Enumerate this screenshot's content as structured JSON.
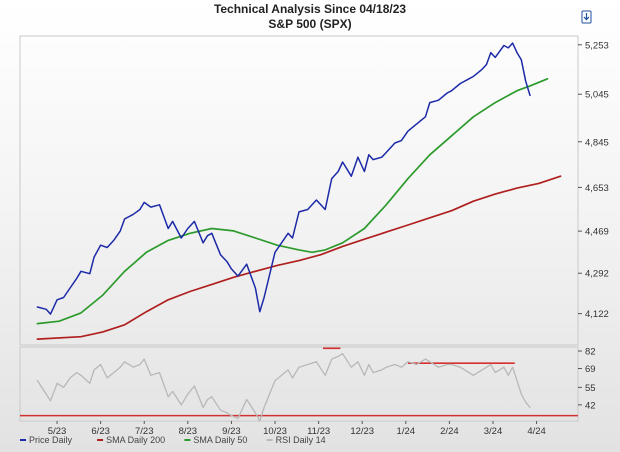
{
  "chart_data": {
    "type": "line",
    "title": "Technical Analysis Since 04/18/23",
    "subtitle": "S&P 500 (SPX)",
    "x_tick_labels": [
      "5/23",
      "6/23",
      "7/23",
      "8/23",
      "9/23",
      "10/23",
      "11/23",
      "12/23",
      "1/24",
      "2/24",
      "3/24",
      "4/24"
    ],
    "x_tick_positions_months": [
      0.45,
      1.45,
      2.45,
      3.45,
      4.45,
      5.45,
      6.45,
      7.45,
      8.45,
      9.45,
      10.45,
      11.45
    ],
    "xlim_months": [
      -0.4,
      12.4
    ],
    "price_panel": {
      "y_ticks": [
        4122,
        4292,
        4469,
        4653,
        4845,
        5045,
        5253
      ],
      "ylim": [
        3990,
        5290
      ],
      "series": [
        {
          "name": "Price Daily",
          "color": "#1c2aa8",
          "x": [
            0.0,
            0.2,
            0.3,
            0.45,
            0.6,
            0.75,
            0.9,
            1.0,
            1.2,
            1.3,
            1.45,
            1.6,
            1.75,
            1.9,
            2.0,
            2.2,
            2.35,
            2.45,
            2.6,
            2.8,
            3.0,
            3.1,
            3.3,
            3.45,
            3.6,
            3.8,
            3.9,
            4.0,
            4.2,
            4.35,
            4.45,
            4.6,
            4.8,
            5.0,
            5.1,
            5.2,
            5.45,
            5.6,
            5.75,
            5.85,
            6.0,
            6.2,
            6.4,
            6.6,
            6.75,
            6.9,
            7.0,
            7.2,
            7.35,
            7.5,
            7.6,
            7.7,
            7.9,
            8.0,
            8.2,
            8.35,
            8.5,
            8.7,
            8.9,
            9.0,
            9.2,
            9.4,
            9.5,
            9.7,
            9.9,
            10.0,
            10.2,
            10.3,
            10.4,
            10.5,
            10.7,
            10.8,
            10.9,
            11.0,
            11.1,
            11.2,
            11.3
          ],
          "y": [
            4150,
            4140,
            4120,
            4180,
            4190,
            4230,
            4270,
            4300,
            4290,
            4360,
            4410,
            4400,
            4430,
            4470,
            4520,
            4540,
            4560,
            4590,
            4570,
            4580,
            4480,
            4510,
            4440,
            4480,
            4510,
            4420,
            4450,
            4460,
            4370,
            4340,
            4310,
            4280,
            4330,
            4230,
            4130,
            4190,
            4380,
            4420,
            4460,
            4440,
            4550,
            4560,
            4600,
            4560,
            4690,
            4720,
            4760,
            4700,
            4780,
            4720,
            4790,
            4770,
            4780,
            4800,
            4840,
            4850,
            4890,
            4920,
            4950,
            5010,
            5020,
            5050,
            5060,
            5090,
            5110,
            5120,
            5150,
            5170,
            5220,
            5200,
            5250,
            5240,
            5260,
            5220,
            5190,
            5100,
            5040
          ]
        },
        {
          "name": "SMA Daily 200",
          "color": "#b01f1f",
          "x": [
            0.0,
            1.0,
            1.5,
            2.0,
            2.5,
            3.0,
            3.5,
            4.0,
            4.5,
            5.0,
            5.5,
            6.0,
            6.5,
            7.0,
            7.5,
            8.0,
            8.5,
            9.0,
            9.5,
            10.0,
            10.5,
            11.0,
            11.5,
            12.0
          ],
          "y": [
            4015,
            4025,
            4045,
            4075,
            4130,
            4180,
            4215,
            4245,
            4275,
            4300,
            4325,
            4345,
            4370,
            4405,
            4435,
            4465,
            4495,
            4525,
            4555,
            4595,
            4625,
            4650,
            4670,
            4700
          ]
        },
        {
          "name": "SMA Daily 50",
          "color": "#2c9b2c",
          "x": [
            0.0,
            0.5,
            1.0,
            1.5,
            2.0,
            2.5,
            3.0,
            3.5,
            4.0,
            4.5,
            5.0,
            5.5,
            6.0,
            6.3,
            6.6,
            7.0,
            7.5,
            8.0,
            8.5,
            9.0,
            9.5,
            10.0,
            10.5,
            11.0,
            11.3,
            11.7
          ],
          "y": [
            4080,
            4090,
            4125,
            4200,
            4300,
            4380,
            4430,
            4460,
            4480,
            4470,
            4440,
            4410,
            4390,
            4380,
            4390,
            4420,
            4480,
            4580,
            4690,
            4790,
            4870,
            4950,
            5010,
            5060,
            5080,
            5110
          ]
        }
      ]
    },
    "rsi_panel": {
      "y_ticks": [
        42,
        55,
        69,
        82
      ],
      "ylim": [
        30,
        85
      ],
      "series": {
        "name": "RSI Daily 14",
        "color": "#b8b8b8",
        "x": [
          0.0,
          0.2,
          0.3,
          0.45,
          0.6,
          0.75,
          0.9,
          1.0,
          1.2,
          1.3,
          1.45,
          1.6,
          1.75,
          1.9,
          2.0,
          2.2,
          2.35,
          2.45,
          2.6,
          2.8,
          3.0,
          3.1,
          3.3,
          3.45,
          3.6,
          3.8,
          3.9,
          4.0,
          4.2,
          4.35,
          4.45,
          4.6,
          4.8,
          5.0,
          5.1,
          5.2,
          5.45,
          5.6,
          5.75,
          5.85,
          6.0,
          6.2,
          6.4,
          6.6,
          6.75,
          6.9,
          7.0,
          7.2,
          7.35,
          7.5,
          7.6,
          7.7,
          7.9,
          8.0,
          8.2,
          8.35,
          8.5,
          8.7,
          8.9,
          9.0,
          9.2,
          9.4,
          9.5,
          9.7,
          9.9,
          10.0,
          10.2,
          10.3,
          10.4,
          10.5,
          10.7,
          10.8,
          10.9,
          11.0,
          11.1,
          11.2,
          11.3
        ],
        "y": [
          60,
          50,
          45,
          58,
          55,
          62,
          66,
          64,
          58,
          68,
          72,
          62,
          66,
          70,
          74,
          70,
          72,
          76,
          64,
          66,
          48,
          52,
          42,
          50,
          56,
          40,
          46,
          48,
          38,
          36,
          34,
          32,
          46,
          36,
          30,
          40,
          60,
          64,
          68,
          62,
          70,
          72,
          74,
          64,
          76,
          78,
          80,
          70,
          74,
          64,
          72,
          66,
          68,
          70,
          72,
          70,
          74,
          72,
          76,
          74,
          70,
          72,
          72,
          70,
          66,
          64,
          68,
          70,
          72,
          66,
          70,
          64,
          70,
          60,
          50,
          44,
          40
        ]
      },
      "reference_lines": [
        {
          "y": 34,
          "x": [
            -0.4,
            12.4
          ],
          "color": "#d43030"
        },
        {
          "y": 84,
          "x": [
            6.55,
            6.95
          ],
          "color": "#d43030"
        },
        {
          "y": 73,
          "x": [
            8.5,
            10.95
          ],
          "color": "#d43030"
        }
      ]
    },
    "legend": [
      {
        "label": "Price Daily",
        "color": "#1c2aa8"
      },
      {
        "label": "SMA Daily 200",
        "color": "#b01f1f"
      },
      {
        "label": "SMA Daily 50",
        "color": "#2c9b2c"
      },
      {
        "label": "RSI Daily 14",
        "color": "#b8b8b8"
      }
    ]
  }
}
